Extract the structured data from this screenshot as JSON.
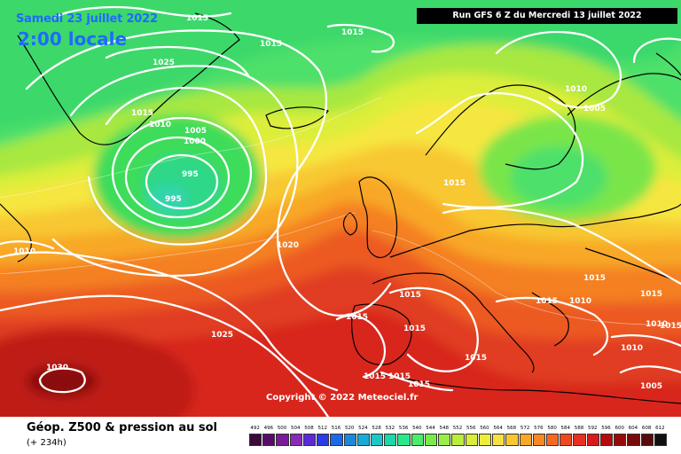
{
  "header": {
    "date": "Samedi 23 juillet 2022",
    "local_time": "2:00 locale",
    "run": "Run GFS 6 Z du Mercredi 13 juillet 2022"
  },
  "copyright": "Copyright © 2022 Meteociel.fr",
  "footer": {
    "title": "Géop. Z500 & pression au sol",
    "subtitle": "(+ 234h)"
  },
  "isobar_labels": [
    "1030",
    "1025",
    "1020",
    "1015",
    "1010",
    "1005",
    "1000",
    "995"
  ],
  "legend_scale": {
    "values": [
      "492",
      "496",
      "500",
      "504",
      "508",
      "512",
      "516",
      "520",
      "524",
      "528",
      "532",
      "536",
      "540",
      "544",
      "548",
      "552",
      "556",
      "560",
      "564",
      "568",
      "572",
      "576",
      "580",
      "584",
      "588",
      "592",
      "596",
      "600",
      "604",
      "608",
      "612"
    ],
    "colors": [
      "#3a0a3a",
      "#5a0a6a",
      "#7a1a9a",
      "#8a2ab8",
      "#5a2ad8",
      "#2a3ae8",
      "#1a6ae8",
      "#1a8ad8",
      "#1aaad8",
      "#1ac8c8",
      "#1ad8a8",
      "#2ae88a",
      "#4aec6a",
      "#7aec4a",
      "#9aee4a",
      "#baee3a",
      "#d8ee3a",
      "#eeee3a",
      "#f8e040",
      "#f8c830",
      "#f8a828",
      "#f88820",
      "#f86820",
      "#f04820",
      "#e83020",
      "#d81a1a",
      "#b80a0a",
      "#980a0a",
      "#780a0a",
      "#580a0a",
      "#101010"
    ]
  },
  "colors": {
    "sea_level_isobar": "#ffffff",
    "title_text": "#1e6bff",
    "coastline": "#000000"
  }
}
